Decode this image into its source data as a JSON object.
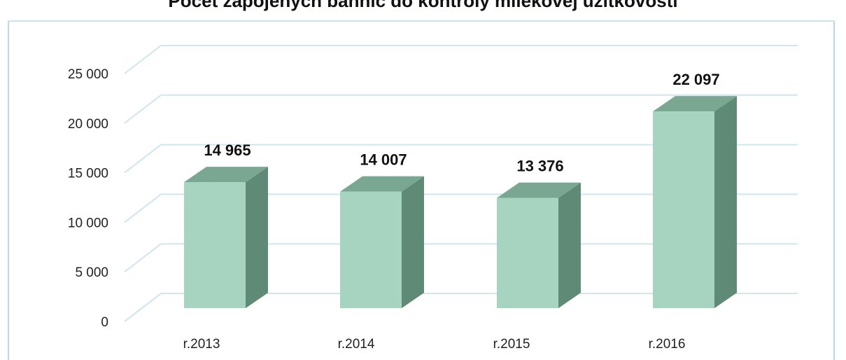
{
  "chart_data": {
    "type": "bar",
    "title": "Počet zapojených bahníc do kontroly mliekovej úžitkovosti",
    "categories": [
      "r.2013",
      "r.2014",
      "r.2015",
      "r.2016"
    ],
    "values": [
      14965,
      14007,
      13376,
      22097
    ],
    "value_labels": [
      "14 965",
      "14 007",
      "13 376",
      "22 097"
    ],
    "y_ticks": [
      0,
      5000,
      10000,
      15000,
      20000,
      25000
    ],
    "y_tick_labels": [
      "0",
      "5 000",
      "10 000",
      "15 000",
      "20 000",
      "25 000"
    ],
    "ylim": [
      0,
      25000
    ],
    "grid": true,
    "legend": "none",
    "style": "3d",
    "colors": {
      "bar_front": "#a6d4c0",
      "bar_side": "#5f8a76",
      "bar_top": "#7aa792",
      "grid": "#cfe6ef",
      "frame": "#b8dbe4"
    }
  }
}
